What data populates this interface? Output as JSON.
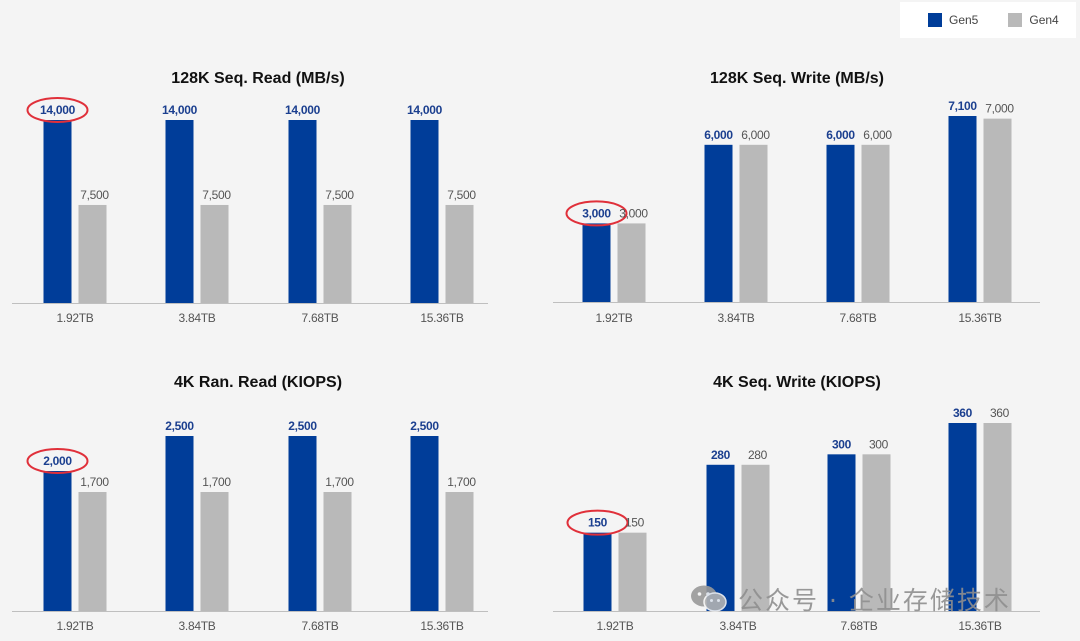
{
  "legend": {
    "items": [
      {
        "name": "Gen5",
        "color": "#003d99"
      },
      {
        "name": "Gen4",
        "color": "#b9b9b9"
      }
    ]
  },
  "colors": {
    "gen5": "#003d99",
    "gen4": "#b9b9b9",
    "gen5_label": "#1b3f8f",
    "gen4_label": "#555555",
    "highlight": "#e0303a"
  },
  "watermark": {
    "text": "公众号 · 企业存储技术",
    "icon": "wechat-icon"
  },
  "chart_data": [
    {
      "type": "bar",
      "title": "128K Seq. Read (MB/s)",
      "categories": [
        "1.92TB",
        "3.84TB",
        "7.68TB",
        "15.36TB"
      ],
      "series": [
        {
          "name": "Gen5",
          "values": [
            14000,
            14000,
            14000,
            14000
          ],
          "labels": [
            "14,000",
            "14,000",
            "14,000",
            "14,000"
          ]
        },
        {
          "name": "Gen4",
          "values": [
            7500,
            7500,
            7500,
            7500
          ],
          "labels": [
            "7,500",
            "7,500",
            "7,500",
            "7,500"
          ]
        }
      ],
      "ylim": [
        0,
        14000
      ],
      "highlighted": {
        "series": "Gen5",
        "category": "1.92TB"
      },
      "grid": false
    },
    {
      "type": "bar",
      "title": "128K Seq. Write (MB/s)",
      "categories": [
        "1.92TB",
        "3.84TB",
        "7.68TB",
        "15.36TB"
      ],
      "series": [
        {
          "name": "Gen5",
          "values": [
            3000,
            6000,
            6000,
            7100
          ],
          "labels": [
            "3,000",
            "6,000",
            "6,000",
            "7,100"
          ]
        },
        {
          "name": "Gen4",
          "values": [
            3000,
            6000,
            6000,
            7000
          ],
          "labels": [
            "3,000",
            "6,000",
            "6,000",
            "7,000"
          ]
        }
      ],
      "ylim": [
        0,
        7100
      ],
      "highlighted": {
        "series": "Gen5",
        "category": "1.92TB"
      },
      "grid": false
    },
    {
      "type": "bar",
      "title": "4K Ran. Read (KIOPS)",
      "categories": [
        "1.92TB",
        "3.84TB",
        "7.68TB",
        "15.36TB"
      ],
      "series": [
        {
          "name": "Gen5",
          "values": [
            2000,
            2500,
            2500,
            2500
          ],
          "labels": [
            "2,000",
            "2,500",
            "2,500",
            "2,500"
          ]
        },
        {
          "name": "Gen4",
          "values": [
            1700,
            1700,
            1700,
            1700
          ],
          "labels": [
            "1,700",
            "1,700",
            "1,700",
            "1,700"
          ]
        }
      ],
      "ylim": [
        0,
        2500
      ],
      "highlighted": {
        "series": "Gen5",
        "category": "1.92TB"
      },
      "grid": false
    },
    {
      "type": "bar",
      "title": "4K Seq. Write (KIOPS)",
      "categories": [
        "1.92TB",
        "3.84TB",
        "7.68TB",
        "15.36TB"
      ],
      "series": [
        {
          "name": "Gen5",
          "values": [
            150,
            280,
            300,
            360
          ],
          "labels": [
            "150",
            "280",
            "300",
            "360"
          ]
        },
        {
          "name": "Gen4",
          "values": [
            150,
            280,
            300,
            360
          ],
          "labels": [
            "150",
            "280",
            "300",
            "360"
          ]
        }
      ],
      "ylim": [
        0,
        360
      ],
      "highlighted": {
        "series": "Gen5",
        "category": "1.92TB"
      },
      "grid": false
    }
  ]
}
